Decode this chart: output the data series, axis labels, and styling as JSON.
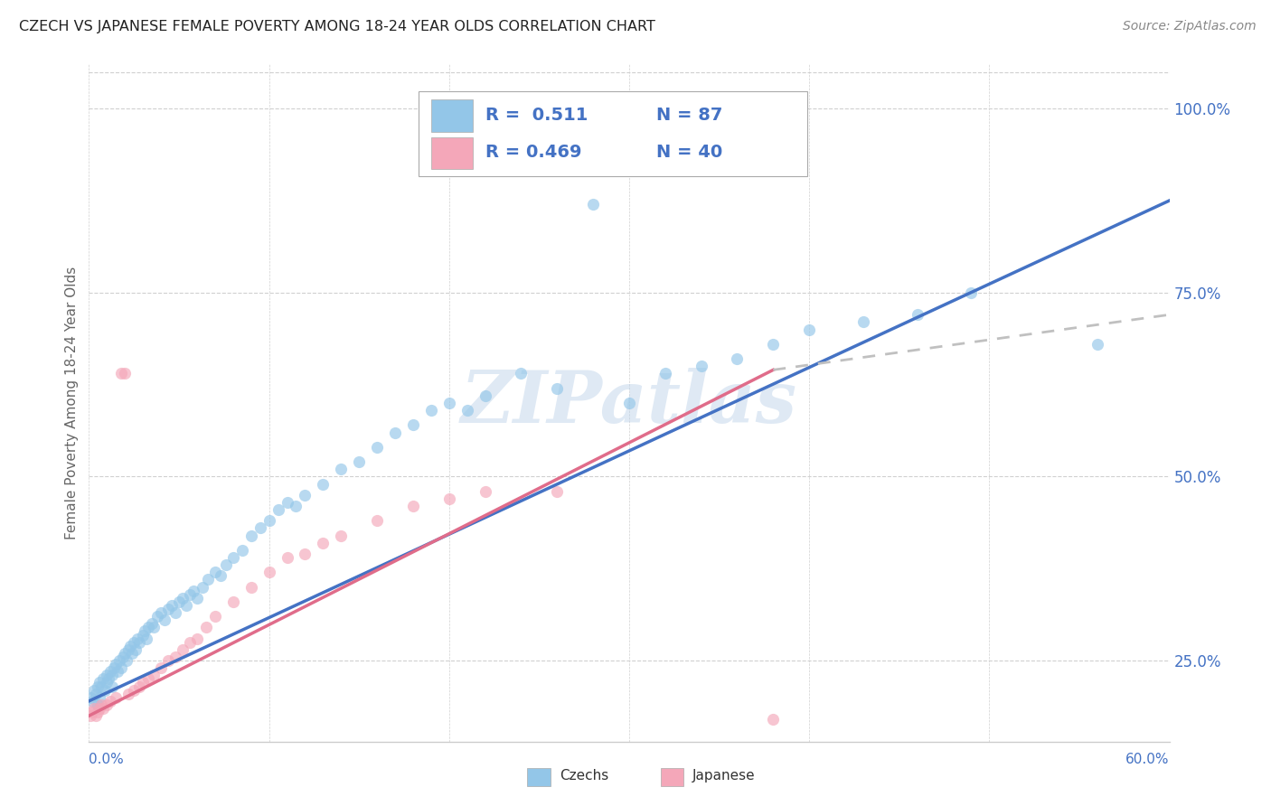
{
  "title": "CZECH VS JAPANESE FEMALE POVERTY AMONG 18-24 YEAR OLDS CORRELATION CHART",
  "source": "Source: ZipAtlas.com",
  "ylabel": "Female Poverty Among 18-24 Year Olds",
  "xlim": [
    0.0,
    0.6
  ],
  "ylim": [
    0.14,
    1.06
  ],
  "yticks": [
    0.25,
    0.5,
    0.75,
    1.0
  ],
  "ytick_labels": [
    "25.0%",
    "50.0%",
    "75.0%",
    "100.0%"
  ],
  "color_czech": "#93c6e8",
  "color_japanese": "#f4a7b9",
  "color_trend_czech": "#4472c4",
  "color_trend_japanese": "#e06c8a",
  "color_trend_dash": "#c0c0c0",
  "watermark": "ZIPatlas",
  "background_color": "#ffffff",
  "grid_color": "#d0d0d0",
  "title_color": "#222222",
  "axis_label_color": "#4472c4",
  "czechs_x": [
    0.001,
    0.002,
    0.003,
    0.004,
    0.005,
    0.005,
    0.006,
    0.006,
    0.007,
    0.008,
    0.009,
    0.01,
    0.01,
    0.011,
    0.012,
    0.013,
    0.013,
    0.014,
    0.015,
    0.016,
    0.017,
    0.018,
    0.019,
    0.02,
    0.021,
    0.022,
    0.023,
    0.024,
    0.025,
    0.026,
    0.027,
    0.028,
    0.03,
    0.031,
    0.032,
    0.033,
    0.035,
    0.036,
    0.038,
    0.04,
    0.042,
    0.044,
    0.046,
    0.048,
    0.05,
    0.052,
    0.054,
    0.056,
    0.058,
    0.06,
    0.063,
    0.066,
    0.07,
    0.073,
    0.076,
    0.08,
    0.085,
    0.09,
    0.095,
    0.1,
    0.105,
    0.11,
    0.115,
    0.12,
    0.13,
    0.14,
    0.15,
    0.16,
    0.17,
    0.18,
    0.19,
    0.2,
    0.21,
    0.22,
    0.24,
    0.26,
    0.28,
    0.3,
    0.32,
    0.34,
    0.36,
    0.38,
    0.4,
    0.43,
    0.46,
    0.49,
    0.56
  ],
  "czechs_y": [
    0.2,
    0.195,
    0.21,
    0.205,
    0.215,
    0.19,
    0.22,
    0.2,
    0.215,
    0.225,
    0.21,
    0.22,
    0.23,
    0.225,
    0.235,
    0.23,
    0.215,
    0.24,
    0.245,
    0.235,
    0.25,
    0.24,
    0.255,
    0.26,
    0.25,
    0.265,
    0.27,
    0.26,
    0.275,
    0.265,
    0.28,
    0.275,
    0.285,
    0.29,
    0.28,
    0.295,
    0.3,
    0.295,
    0.31,
    0.315,
    0.305,
    0.32,
    0.325,
    0.315,
    0.33,
    0.335,
    0.325,
    0.34,
    0.345,
    0.335,
    0.35,
    0.36,
    0.37,
    0.365,
    0.38,
    0.39,
    0.4,
    0.42,
    0.43,
    0.44,
    0.455,
    0.465,
    0.46,
    0.475,
    0.49,
    0.51,
    0.52,
    0.54,
    0.56,
    0.57,
    0.59,
    0.6,
    0.59,
    0.61,
    0.64,
    0.62,
    0.87,
    0.6,
    0.64,
    0.65,
    0.66,
    0.68,
    0.7,
    0.71,
    0.72,
    0.75,
    0.68
  ],
  "japanese_x": [
    0.001,
    0.002,
    0.003,
    0.004,
    0.005,
    0.006,
    0.007,
    0.008,
    0.01,
    0.012,
    0.015,
    0.018,
    0.02,
    0.022,
    0.025,
    0.028,
    0.03,
    0.033,
    0.036,
    0.04,
    0.044,
    0.048,
    0.052,
    0.056,
    0.06,
    0.065,
    0.07,
    0.08,
    0.09,
    0.1,
    0.11,
    0.12,
    0.13,
    0.14,
    0.16,
    0.18,
    0.2,
    0.22,
    0.26,
    0.38
  ],
  "japanese_y": [
    0.175,
    0.18,
    0.185,
    0.175,
    0.18,
    0.185,
    0.19,
    0.185,
    0.19,
    0.195,
    0.2,
    0.64,
    0.64,
    0.205,
    0.21,
    0.215,
    0.22,
    0.225,
    0.23,
    0.24,
    0.25,
    0.255,
    0.265,
    0.275,
    0.28,
    0.295,
    0.31,
    0.33,
    0.35,
    0.37,
    0.39,
    0.395,
    0.41,
    0.42,
    0.44,
    0.46,
    0.47,
    0.48,
    0.48,
    0.17
  ],
  "trend_czech_x0": 0.0,
  "trend_czech_x1": 0.6,
  "trend_czech_y0": 0.195,
  "trend_czech_y1": 0.875,
  "trend_jp_x0": 0.0,
  "trend_jp_x1": 0.38,
  "trend_jp_y0": 0.175,
  "trend_jp_y1": 0.645,
  "trend_jp_dash_x0": 0.38,
  "trend_jp_dash_x1": 0.6,
  "trend_jp_dash_y0": 0.645,
  "trend_jp_dash_y1": 0.72
}
